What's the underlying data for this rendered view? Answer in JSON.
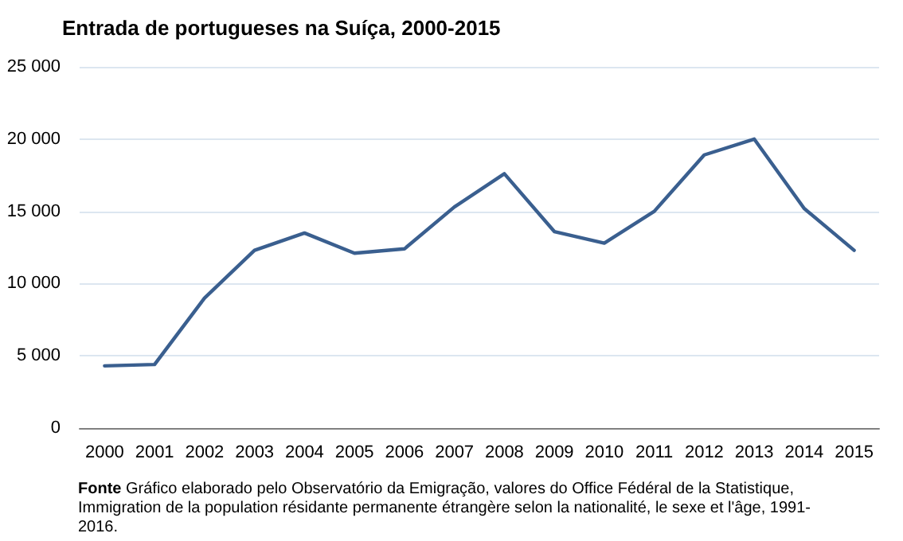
{
  "chart_data": {
    "type": "line",
    "title": "Entrada de portugueses na Suíça, 2000-2015",
    "categories": [
      "2000",
      "2001",
      "2002",
      "2003",
      "2004",
      "2005",
      "2006",
      "2007",
      "2008",
      "2009",
      "2010",
      "2011",
      "2012",
      "2013",
      "2014",
      "2015"
    ],
    "series": [
      {
        "color": "#3a5f8f",
        "values": [
          4300,
          4400,
          9000,
          12300,
          13500,
          12100,
          12400,
          15300,
          17600,
          13600,
          12800,
          15000,
          18900,
          20000,
          15200,
          12300
        ]
      }
    ],
    "ylim": [
      0,
      25000
    ],
    "yticks": [
      0,
      {
        "value": 5000,
        "label": "5 000"
      },
      {
        "value": 10000,
        "label": "10 000"
      },
      {
        "value": 15000,
        "label": "15 000"
      },
      {
        "value": 20000,
        "label": "20 000"
      },
      {
        "value": 25000,
        "label": "25 000"
      }
    ],
    "grid": "y",
    "marker": "none",
    "line_style": "solid",
    "annotations": [
      "Fonte  Gráfico elaborado pelo Observatório da Emigração, valores do Office Fédéral de la Statistique, Immigration de la population résidante permanente étrangère selon la nationalité, le sexe et l'âge, 1991-2016."
    ]
  }
}
